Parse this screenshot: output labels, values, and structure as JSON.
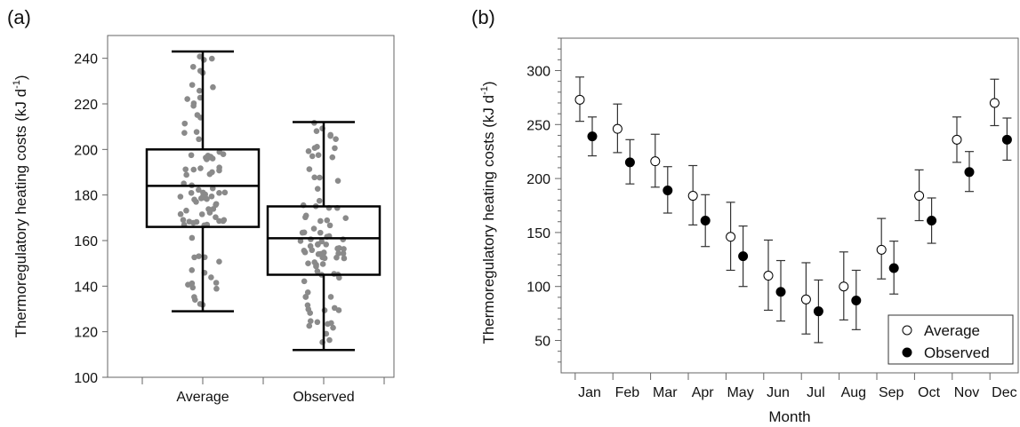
{
  "chart_data": [
    {
      "panel_label": "(a)",
      "type": "box",
      "ylabel": "Thermoregulatory heating costs (kJ d",
      "ylabel_sup": "-1",
      "ylabel_end": ")",
      "ylim": [
        100,
        250
      ],
      "yticks": [
        100,
        120,
        140,
        160,
        180,
        200,
        220,
        240
      ],
      "categories": [
        "Average",
        "Observed"
      ],
      "boxes": [
        {
          "category": "Average",
          "min": 129,
          "q1": 166,
          "median": 184,
          "q3": 200,
          "max": 243
        },
        {
          "category": "Observed",
          "min": 112,
          "q1": 145,
          "median": 161,
          "q3": 175,
          "max": 212
        }
      ],
      "points_color": "#8a8a8a"
    },
    {
      "panel_label": "(b)",
      "type": "scatter",
      "xlabel": "Month",
      "ylabel": "Thermoregulatory heating costs (kJ d",
      "ylabel_sup": "-1",
      "ylabel_end": ")",
      "ylim": [
        20,
        330
      ],
      "yticks": [
        50,
        100,
        150,
        200,
        250,
        300
      ],
      "categories": [
        "Jan",
        "Feb",
        "Mar",
        "Apr",
        "May",
        "Jun",
        "Jul",
        "Aug",
        "Sep",
        "Oct",
        "Nov",
        "Dec"
      ],
      "series": [
        {
          "name": "Average",
          "values": [
            273,
            246,
            216,
            184,
            146,
            110,
            88,
            100,
            134,
            184,
            236,
            270
          ],
          "low": [
            253,
            224,
            192,
            157,
            115,
            78,
            56,
            69,
            107,
            161,
            215,
            249
          ],
          "high": [
            294,
            269,
            241,
            212,
            178,
            143,
            122,
            132,
            163,
            208,
            257,
            292
          ]
        },
        {
          "name": "Observed",
          "values": [
            239,
            215,
            189,
            161,
            128,
            95,
            77,
            87,
            117,
            161,
            206,
            236
          ],
          "low": [
            221,
            195,
            168,
            137,
            100,
            68,
            48,
            60,
            93,
            140,
            188,
            217
          ],
          "high": [
            257,
            236,
            211,
            185,
            156,
            124,
            106,
            115,
            142,
            182,
            225,
            256
          ]
        }
      ],
      "legend_position": "bottom-right"
    }
  ]
}
